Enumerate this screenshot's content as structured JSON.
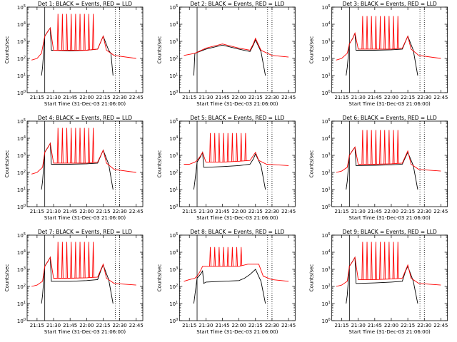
{
  "chart_data": [
    {
      "type": "line",
      "title": "Det 1: BLACK = Events, RED = LLD",
      "xlabel": "Start Time (31-Dec-03 21:06:00)",
      "ylabel": "Counts/sec",
      "x_ticks": [
        "21:15",
        "21:30",
        "21:45",
        "22:00",
        "22:15",
        "22:30",
        "22:45"
      ],
      "yscale": "log",
      "ylim": [
        1,
        100000
      ],
      "y_ticks": [
        "10^0",
        "10^1",
        "10^2",
        "10^3",
        "10^4",
        "10^5"
      ],
      "vlines_solid": [
        "21:22"
      ],
      "vlines_dotted": [
        "22:26",
        "22:30"
      ],
      "series": [
        {
          "color": "#000000",
          "x": [
            "21:10",
            "21:19",
            "21:20",
            "21:22",
            "21:25",
            "21:27",
            "21:28",
            "21:30",
            "21:45",
            "22:00",
            "22:10",
            "22:13",
            "22:15",
            "22:20",
            "22:22",
            "22:24"
          ],
          "y": [
            null,
            10,
            30,
            2000,
            4000,
            6000,
            300,
            300,
            280,
            300,
            350,
            1000,
            2000,
            300,
            200,
            10
          ]
        },
        {
          "color": "#ff0000",
          "x": [
            "21:10",
            "21:15",
            "21:19",
            "21:22",
            "21:25",
            "21:27",
            "21:30",
            "21:45",
            "22:00",
            "22:10",
            "22:15",
            "22:18",
            "22:25",
            "22:45"
          ],
          "y": [
            80,
            100,
            200,
            2000,
            4000,
            6000,
            300,
            300,
            300,
            350,
            2000,
            300,
            150,
            100
          ]
        }
      ],
      "spike_times": [
        "21:34",
        "21:38",
        "21:42",
        "21:46",
        "21:50",
        "21:54",
        "21:58",
        "22:02",
        "22:06"
      ],
      "spike_peak": 40000
    },
    {
      "type": "line",
      "title": "Det 2: BLACK = Events, RED = LLD",
      "xlabel": "Start Time (31-Dec-03 21:06:00)",
      "ylabel": "Counts/sec",
      "x_ticks": [
        "21:15",
        "21:30",
        "21:45",
        "22:00",
        "22:15",
        "22:30",
        "22:45"
      ],
      "yscale": "log",
      "ylim": [
        1,
        100000
      ],
      "y_ticks": [
        "10^0",
        "10^1",
        "10^2",
        "10^3",
        "10^4",
        "10^5"
      ],
      "vlines_solid": [
        "21:22"
      ],
      "vlines_dotted": [
        "22:26",
        "22:30"
      ],
      "series": [
        {
          "color": "#000000",
          "x": [
            "21:19",
            "21:20",
            "21:30",
            "21:45",
            "22:00",
            "22:10",
            "22:13",
            "22:15",
            "22:20",
            "22:24"
          ],
          "y": [
            10,
            200,
            350,
            600,
            350,
            250,
            600,
            1200,
            250,
            10
          ]
        },
        {
          "color": "#ff0000",
          "x": [
            "21:10",
            "21:20",
            "21:30",
            "21:45",
            "22:00",
            "22:10",
            "22:13",
            "22:15",
            "22:20",
            "22:30",
            "22:45"
          ],
          "y": [
            150,
            200,
            400,
            700,
            400,
            300,
            700,
            1500,
            300,
            150,
            120
          ]
        }
      ],
      "spike_times": [],
      "spike_peak": 0
    },
    {
      "type": "line",
      "title": "Det 3: BLACK = Events, RED = LLD",
      "xlabel": "Start Time (31-Dec-03 21:06:00)",
      "ylabel": "Counts/sec",
      "x_ticks": [
        "21:15",
        "21:30",
        "21:45",
        "22:00",
        "22:15",
        "22:30",
        "22:45"
      ],
      "yscale": "log",
      "ylim": [
        1,
        100000
      ],
      "y_ticks": [
        "10^0",
        "10^1",
        "10^2",
        "10^3",
        "10^4",
        "10^5"
      ],
      "vlines_solid": [
        "21:22"
      ],
      "vlines_dotted": [
        "22:26",
        "22:30"
      ],
      "series": [
        {
          "color": "#000000",
          "x": [
            "21:19",
            "21:20",
            "21:22",
            "21:25",
            "21:27",
            "21:28",
            "21:30",
            "21:45",
            "22:00",
            "22:10",
            "22:13",
            "22:15",
            "22:20",
            "22:24"
          ],
          "y": [
            10,
            30,
            700,
            1500,
            3000,
            300,
            300,
            300,
            320,
            350,
            1000,
            2000,
            300,
            10
          ]
        },
        {
          "color": "#ff0000",
          "x": [
            "21:10",
            "21:15",
            "21:20",
            "21:22",
            "21:25",
            "21:27",
            "21:30",
            "21:45",
            "22:00",
            "22:10",
            "22:15",
            "22:18",
            "22:25",
            "22:45"
          ],
          "y": [
            80,
            100,
            200,
            700,
            1500,
            3000,
            350,
            350,
            350,
            400,
            2000,
            350,
            150,
            100
          ]
        }
      ],
      "spike_times": [
        "21:34",
        "21:38",
        "21:42",
        "21:46",
        "21:50",
        "21:54",
        "21:58",
        "22:02",
        "22:06"
      ],
      "spike_peak": 30000
    },
    {
      "type": "line",
      "title": "Det 4: BLACK = Events, RED = LLD",
      "xlabel": "Start Time (31-Dec-03 21:06:00)",
      "ylabel": "Counts/sec",
      "x_ticks": [
        "21:15",
        "21:30",
        "21:45",
        "22:00",
        "22:15",
        "22:30",
        "22:45"
      ],
      "yscale": "log",
      "ylim": [
        1,
        100000
      ],
      "y_ticks": [
        "10^0",
        "10^1",
        "10^2",
        "10^3",
        "10^4",
        "10^5"
      ],
      "vlines_solid": [
        "21:22"
      ],
      "vlines_dotted": [
        "22:26",
        "22:30"
      ],
      "series": [
        {
          "color": "#000000",
          "x": [
            "21:19",
            "21:20",
            "21:22",
            "21:25",
            "21:27",
            "21:28",
            "21:30",
            "21:45",
            "22:00",
            "22:10",
            "22:13",
            "22:15",
            "22:20",
            "22:24"
          ],
          "y": [
            10,
            30,
            1500,
            3000,
            5000,
            300,
            300,
            300,
            320,
            350,
            1000,
            2000,
            300,
            10
          ]
        },
        {
          "color": "#ff0000",
          "x": [
            "21:10",
            "21:15",
            "21:20",
            "21:22",
            "21:25",
            "21:27",
            "21:30",
            "21:45",
            "22:00",
            "22:10",
            "22:15",
            "22:18",
            "22:25",
            "22:45"
          ],
          "y": [
            80,
            100,
            200,
            1500,
            3000,
            5000,
            350,
            350,
            350,
            400,
            2000,
            350,
            150,
            100
          ]
        }
      ],
      "spike_times": [
        "21:34",
        "21:38",
        "21:42",
        "21:46",
        "21:50",
        "21:54",
        "21:58",
        "22:02",
        "22:06"
      ],
      "spike_peak": 40000
    },
    {
      "type": "line",
      "title": "Det 5: BLACK = Events, RED = LLD",
      "xlabel": "Start Time (31-Dec-03 21:06:00)",
      "ylabel": "Counts/sec",
      "x_ticks": [
        "21:15",
        "21:30",
        "21:45",
        "22:00",
        "22:15",
        "22:30",
        "22:45"
      ],
      "yscale": "log",
      "ylim": [
        1,
        100000
      ],
      "y_ticks": [
        "10^0",
        "10^1",
        "10^2",
        "10^3",
        "10^4",
        "10^5"
      ],
      "vlines_solid": [
        "21:22"
      ],
      "vlines_dotted": [
        "22:26",
        "22:30"
      ],
      "series": [
        {
          "color": "#000000",
          "x": [
            "21:19",
            "21:20",
            "21:22",
            "21:25",
            "21:27",
            "21:28",
            "21:30",
            "21:45",
            "22:00",
            "22:10",
            "22:13",
            "22:15",
            "22:20",
            "22:24"
          ],
          "y": [
            10,
            30,
            400,
            800,
            1500,
            200,
            200,
            220,
            250,
            300,
            600,
            1200,
            250,
            10
          ]
        },
        {
          "color": "#ff0000",
          "x": [
            "21:10",
            "21:15",
            "21:20",
            "21:22",
            "21:25",
            "21:27",
            "21:30",
            "21:45",
            "22:00",
            "22:10",
            "22:15",
            "22:18",
            "22:25",
            "22:45"
          ],
          "y": [
            300,
            300,
            400,
            500,
            900,
            1500,
            400,
            400,
            450,
            500,
            1500,
            500,
            300,
            250
          ]
        }
      ],
      "spike_times": [
        "21:34",
        "21:38",
        "21:42",
        "21:46",
        "21:50",
        "21:54",
        "21:58",
        "22:02",
        "22:06"
      ],
      "spike_peak": 20000
    },
    {
      "type": "line",
      "title": "Det 6: BLACK = Events, RED = LLD",
      "xlabel": "Start Time (31-Dec-03 21:06:00)",
      "ylabel": "Counts/sec",
      "x_ticks": [
        "21:15",
        "21:30",
        "21:45",
        "22:00",
        "22:15",
        "22:30",
        "22:45"
      ],
      "yscale": "log",
      "ylim": [
        1,
        100000
      ],
      "y_ticks": [
        "10^0",
        "10^1",
        "10^2",
        "10^3",
        "10^4",
        "10^5"
      ],
      "vlines_solid": [
        "21:22"
      ],
      "vlines_dotted": [
        "22:26",
        "22:30"
      ],
      "series": [
        {
          "color": "#000000",
          "x": [
            "21:19",
            "21:20",
            "21:22",
            "21:25",
            "21:27",
            "21:28",
            "21:30",
            "21:45",
            "22:00",
            "22:10",
            "22:13",
            "22:15",
            "22:20",
            "22:24"
          ],
          "y": [
            10,
            30,
            1000,
            2000,
            3000,
            250,
            250,
            260,
            280,
            300,
            800,
            1500,
            250,
            10
          ]
        },
        {
          "color": "#ff0000",
          "x": [
            "21:10",
            "21:15",
            "21:20",
            "21:22",
            "21:25",
            "21:27",
            "21:30",
            "21:45",
            "22:00",
            "22:10",
            "22:15",
            "22:18",
            "22:25",
            "22:45"
          ],
          "y": [
            100,
            120,
            200,
            1000,
            2000,
            3000,
            300,
            300,
            320,
            350,
            1800,
            300,
            150,
            120
          ]
        }
      ],
      "spike_times": [
        "21:34",
        "21:38",
        "21:42",
        "21:46",
        "21:50",
        "21:54",
        "21:58",
        "22:02",
        "22:06"
      ],
      "spike_peak": 30000
    },
    {
      "type": "line",
      "title": "Det 7: BLACK = Events, RED = LLD",
      "xlabel": "Start Time (31-Dec-03 21:06:00)",
      "ylabel": "Counts/sec",
      "x_ticks": [
        "21:15",
        "21:30",
        "21:45",
        "22:00",
        "22:15",
        "22:30",
        "22:45"
      ],
      "yscale": "log",
      "ylim": [
        1,
        100000
      ],
      "y_ticks": [
        "10^0",
        "10^1",
        "10^2",
        "10^3",
        "10^4",
        "10^5"
      ],
      "vlines_solid": [
        "21:22"
      ],
      "vlines_dotted": [
        "22:26",
        "22:30"
      ],
      "series": [
        {
          "color": "#000000",
          "x": [
            "21:19",
            "21:20",
            "21:22",
            "21:25",
            "21:27",
            "21:28",
            "21:30",
            "21:45",
            "22:00",
            "22:10",
            "22:13",
            "22:15",
            "22:20",
            "22:24"
          ],
          "y": [
            10,
            30,
            1500,
            3000,
            5000,
            200,
            200,
            200,
            220,
            250,
            900,
            1800,
            250,
            10
          ]
        },
        {
          "color": "#ff0000",
          "x": [
            "21:10",
            "21:15",
            "21:20",
            "21:22",
            "21:25",
            "21:27",
            "21:30",
            "21:45",
            "22:00",
            "22:10",
            "22:15",
            "22:18",
            "22:25",
            "22:45"
          ],
          "y": [
            100,
            120,
            200,
            1500,
            3000,
            5000,
            300,
            300,
            320,
            350,
            2000,
            300,
            150,
            120
          ]
        }
      ],
      "spike_times": [
        "21:34",
        "21:38",
        "21:42",
        "21:46",
        "21:50",
        "21:54",
        "21:58",
        "22:02",
        "22:06"
      ],
      "spike_peak": 40000
    },
    {
      "type": "line",
      "title": "Det 8: BLACK = Events, RED = LLD",
      "xlabel": "Start Time (31-Dec-03 21:06:00)",
      "ylabel": "Counts/sec",
      "x_ticks": [
        "21:15",
        "21:30",
        "21:45",
        "22:00",
        "22:15",
        "22:30",
        "22:45"
      ],
      "yscale": "log",
      "ylim": [
        1,
        100000
      ],
      "y_ticks": [
        "10^0",
        "10^1",
        "10^2",
        "10^3",
        "10^4",
        "10^5"
      ],
      "vlines_solid": [
        "21:22"
      ],
      "vlines_dotted": [
        "22:26",
        "22:30"
      ],
      "series": [
        {
          "color": "#000000",
          "x": [
            "21:19",
            "21:20",
            "21:22",
            "21:25",
            "21:27",
            "21:28",
            "21:30",
            "21:45",
            "22:00",
            "22:05",
            "22:10",
            "22:15",
            "22:20",
            "22:24"
          ],
          "y": [
            10,
            30,
            300,
            500,
            800,
            150,
            180,
            200,
            220,
            300,
            500,
            1000,
            200,
            10
          ]
        },
        {
          "color": "#ff0000",
          "x": [
            "21:10",
            "21:15",
            "21:20",
            "21:22",
            "21:25",
            "21:27",
            "21:30",
            "21:45",
            "22:00",
            "22:08",
            "22:12",
            "22:18",
            "22:22",
            "22:30",
            "22:45"
          ],
          "y": [
            200,
            250,
            300,
            400,
            800,
            1500,
            1500,
            1500,
            1500,
            2000,
            2000,
            2000,
            400,
            250,
            200
          ]
        }
      ],
      "spike_times": [
        "21:34",
        "21:38",
        "21:42",
        "21:46",
        "21:50",
        "21:54",
        "21:58",
        "22:02"
      ],
      "spike_peak": 20000
    },
    {
      "type": "line",
      "title": "Det 9: BLACK = Events, RED = LLD",
      "xlabel": "Start Time (31-Dec-03 21:06:00)",
      "ylabel": "Counts/sec",
      "x_ticks": [
        "21:15",
        "21:30",
        "21:45",
        "22:00",
        "22:15",
        "22:30",
        "22:45"
      ],
      "yscale": "log",
      "ylim": [
        1,
        100000
      ],
      "y_ticks": [
        "10^0",
        "10^1",
        "10^2",
        "10^3",
        "10^4",
        "10^5"
      ],
      "vlines_solid": [
        "21:22"
      ],
      "vlines_dotted": [
        "22:26",
        "22:30"
      ],
      "series": [
        {
          "color": "#000000",
          "x": [
            "21:19",
            "21:20",
            "21:22",
            "21:25",
            "21:27",
            "21:28",
            "21:30",
            "21:45",
            "22:00",
            "22:10",
            "22:13",
            "22:15",
            "22:20",
            "22:24"
          ],
          "y": [
            10,
            30,
            1500,
            3000,
            5000,
            150,
            150,
            160,
            180,
            200,
            800,
            1500,
            200,
            10
          ]
        },
        {
          "color": "#ff0000",
          "x": [
            "21:10",
            "21:15",
            "21:20",
            "21:22",
            "21:25",
            "21:27",
            "21:30",
            "21:45",
            "22:00",
            "22:10",
            "22:15",
            "22:18",
            "22:25",
            "22:45"
          ],
          "y": [
            100,
            120,
            200,
            1500,
            3000,
            5000,
            250,
            250,
            270,
            300,
            1800,
            300,
            150,
            120
          ]
        }
      ],
      "spike_times": [
        "21:34",
        "21:38",
        "21:42",
        "21:46",
        "21:50",
        "21:54",
        "21:58",
        "22:02",
        "22:06"
      ],
      "spike_peak": 40000
    }
  ]
}
